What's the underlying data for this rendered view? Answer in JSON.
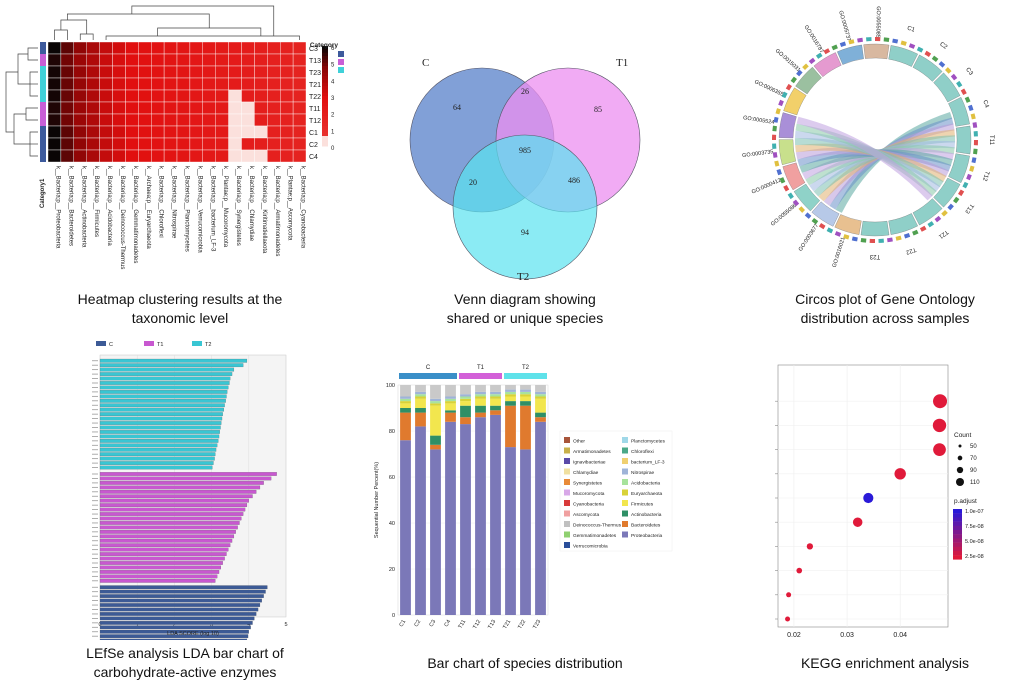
{
  "panels": [
    {
      "id": "heatmap",
      "caption_line1": "Heatmap clustering results at the",
      "caption_line2": "taxonomic level",
      "chart_data": {
        "type": "heatmap",
        "rows": [
          "C3",
          "T13",
          "T23",
          "T21",
          "T22",
          "T11",
          "T12",
          "C1",
          "C2",
          "C4"
        ],
        "row_category": [
          "C",
          "T1",
          "T2",
          "T2",
          "T2",
          "T1",
          "T1",
          "C",
          "C",
          "C"
        ],
        "columns": [
          "k__Bacteria;p__Proteobacteria",
          "k__Bacteria;p__Bacteroidetes",
          "k__Bacteria;p__Actinobacteria",
          "k__Bacteria;p__Firmicutes",
          "k__Bacteria;p__Acidobacteria",
          "k__Bacteria;p__Deinococcus-Thermus",
          "k__Bacteria;p__Gemmatimonadetes",
          "k__Archaea;p__Euryarchaeota",
          "k__Bacteria;p__Chloroflexi",
          "k__Bacteria;p__Nitrospirae",
          "k__Bacteria;p__Planctomycetes",
          "k__Bacteria;p__Verrucomicrobia",
          "k__Bacteria;p__bacterium_LF-3",
          "k__Plantae;p__Mucoromycota",
          "k__Bacteria;p__Synergistetes",
          "k__Bacteria;p__Chlamydiae",
          "k__Bacteria;p__Kiritimatiellaeota",
          "k__Bacteria;p__Armatimonadetes",
          "k__Plantae;p__Ascomycota",
          "k__Bacteria;p__Cyanobacteria"
        ],
        "values": [
          [
            6.0,
            5.2,
            4.6,
            4.1,
            3.6,
            3.3,
            3.0,
            2.9,
            2.8,
            2.7,
            2.6,
            2.5,
            2.4,
            2.3,
            2.2,
            2.1,
            2.0,
            1.9,
            1.8,
            1.7
          ],
          [
            5.8,
            5.0,
            4.4,
            4.0,
            3.5,
            3.2,
            3.0,
            2.9,
            2.8,
            2.7,
            2.6,
            2.5,
            2.4,
            2.3,
            2.2,
            2.1,
            2.0,
            1.9,
            1.8,
            1.7
          ],
          [
            5.9,
            5.1,
            4.5,
            4.0,
            3.5,
            3.2,
            3.0,
            2.9,
            2.8,
            2.7,
            2.6,
            2.5,
            2.4,
            2.3,
            2.2,
            2.1,
            2.0,
            1.9,
            1.8,
            1.7
          ],
          [
            5.9,
            5.1,
            4.5,
            4.0,
            3.5,
            3.2,
            3.0,
            2.9,
            2.8,
            2.7,
            2.6,
            2.5,
            2.4,
            2.3,
            2.2,
            2.1,
            2.0,
            1.9,
            1.8,
            1.7
          ],
          [
            5.9,
            5.1,
            4.5,
            4.0,
            3.5,
            3.2,
            3.0,
            2.9,
            2.8,
            2.7,
            2.6,
            2.5,
            2.4,
            2.3,
            0.2,
            2.1,
            2.0,
            1.9,
            1.8,
            1.7
          ],
          [
            5.8,
            5.0,
            4.4,
            4.0,
            3.5,
            3.2,
            3.0,
            2.9,
            2.8,
            2.7,
            2.6,
            2.5,
            2.4,
            2.3,
            0.3,
            0.3,
            2.0,
            1.9,
            1.8,
            1.7
          ],
          [
            5.8,
            5.0,
            4.4,
            4.0,
            3.5,
            3.2,
            3.0,
            2.9,
            2.8,
            2.7,
            2.6,
            2.5,
            2.4,
            2.3,
            0.2,
            0.2,
            2.0,
            1.9,
            1.8,
            1.7
          ],
          [
            6.0,
            5.2,
            4.6,
            4.1,
            3.6,
            3.3,
            3.0,
            2.9,
            2.8,
            2.7,
            2.6,
            2.5,
            2.4,
            2.3,
            0.1,
            0.5,
            0.4,
            1.9,
            1.8,
            1.7
          ],
          [
            6.0,
            5.2,
            4.6,
            4.1,
            3.6,
            3.3,
            3.0,
            2.9,
            2.8,
            2.7,
            2.6,
            2.5,
            2.4,
            2.3,
            0.1,
            2.1,
            2.0,
            1.9,
            1.8,
            1.7
          ],
          [
            6.0,
            5.2,
            4.6,
            4.1,
            3.6,
            3.3,
            3.0,
            2.9,
            2.8,
            2.7,
            2.6,
            2.5,
            2.4,
            2.3,
            0.1,
            0.1,
            0.1,
            1.9,
            1.8,
            1.7
          ]
        ],
        "colorbar_ticks": [
          "6",
          "5",
          "4",
          "3",
          "2",
          "1",
          "0"
        ],
        "legend_title": "Category",
        "legend_items": [
          "C",
          "T1",
          "T2"
        ],
        "legend_colors": [
          "#3d5a9c",
          "#c85fd6",
          "#3fd1d9"
        ],
        "category_label": "Category1"
      }
    },
    {
      "id": "venn",
      "caption_line1": "Venn diagram showing",
      "caption_line2": "shared or unique species",
      "chart_data": {
        "type": "venn",
        "sets": [
          "C",
          "T1",
          "T2"
        ],
        "set_colors": [
          "#6b8fd0",
          "#ec8ff0",
          "#5ae3f0"
        ],
        "regions": {
          "C_only": "64",
          "T1_only": "85",
          "T2_only": "94",
          "C_T1": "26",
          "C_T2": "20",
          "T1_T2": "486",
          "C_T1_T2": "985"
        }
      }
    },
    {
      "id": "circos",
      "caption_line1": "Circos plot of Gene Ontology",
      "caption_line2": "distribution across samples",
      "chart_data": {
        "type": "circos",
        "go_terms": [
          "GO:0016021",
          "GO:0003677",
          "GO:0055086",
          "GO:0000412",
          "GO:0003735",
          "GO:0005524",
          "GO:0006355",
          "GO:0015031",
          "GO:0016787",
          "GO:0005737",
          "GO:0055085"
        ],
        "samples": [
          "C1",
          "C2",
          "C3",
          "C4",
          "T11",
          "T12",
          "T13",
          "T21",
          "T22",
          "T23"
        ]
      }
    },
    {
      "id": "lefse",
      "caption_line1": "LEfSe analysis LDA bar chart of",
      "caption_line2": "carbohydrate-active enzymes",
      "chart_data": {
        "type": "bar",
        "orientation": "horizontal",
        "legend": [
          "C",
          "T1",
          "T2"
        ],
        "colors": [
          "#3c5a96",
          "#c858d0",
          "#39c6d3"
        ],
        "xlabel": "LDA SCORE (log 10)",
        "xticks": [
          "0",
          "1",
          "2",
          "3",
          "4",
          "5"
        ],
        "xlim": [
          0,
          5
        ],
        "series": [
          {
            "name": "T2",
            "values": [
              3.95,
              3.85,
              3.6,
              3.55,
              3.5,
              3.48,
              3.45,
              3.42,
              3.4,
              3.38,
              3.35,
              3.33,
              3.3,
              3.28,
              3.26,
              3.24,
              3.22,
              3.2,
              3.18,
              3.15,
              3.12,
              3.1,
              3.08,
              3.05,
              3.02
            ]
          },
          {
            "name": "T1",
            "values": [
              4.75,
              4.6,
              4.4,
              4.3,
              4.2,
              4.1,
              4.0,
              3.95,
              3.9,
              3.85,
              3.8,
              3.75,
              3.7,
              3.65,
              3.6,
              3.55,
              3.5,
              3.45,
              3.4,
              3.35,
              3.3,
              3.25,
              3.2,
              3.15,
              3.1
            ]
          },
          {
            "name": "C",
            "values": [
              4.5,
              4.45,
              4.4,
              4.35,
              4.3,
              4.25,
              4.2,
              4.15,
              4.1,
              4.05,
              4.0,
              3.98,
              3.95,
              3.92,
              3.9,
              3.88,
              3.86,
              3.84,
              3.82,
              3.8
            ]
          }
        ]
      }
    },
    {
      "id": "stacked",
      "caption_line1": "Bar chart of species distribution",
      "caption_line2": "",
      "chart_data": {
        "type": "bar",
        "stacked": true,
        "ylabel": "Sequential Number Percent(%)",
        "yticks": [
          "0",
          "20",
          "40",
          "60",
          "80",
          "100"
        ],
        "ylim": [
          0,
          100
        ],
        "categories": [
          "C1",
          "C2",
          "C3",
          "C4",
          "T11",
          "T12",
          "T13",
          "T21",
          "T22",
          "T23"
        ],
        "groups": [
          {
            "name": "C",
            "color": "#3a8fc8"
          },
          {
            "name": "T1",
            "color": "#d360d8"
          },
          {
            "name": "T2",
            "color": "#5fe2ea"
          }
        ],
        "series": [
          {
            "name": "Proteobacteria",
            "color": "#7b78b8",
            "values": [
              76,
              82,
              72,
              84,
              83,
              86,
              87,
              73,
              72,
              84
            ]
          },
          {
            "name": "Bacteroidetes",
            "color": "#e07a2e",
            "values": [
              12,
              6,
              2,
              4,
              3,
              2,
              2,
              18,
              19,
              2
            ]
          },
          {
            "name": "Actinobacteria",
            "color": "#2f8f66",
            "values": [
              2,
              2,
              4,
              1,
              5,
              3,
              2,
              2,
              2,
              2
            ]
          },
          {
            "name": "Firmicutes",
            "color": "#f2e64e",
            "values": [
              2,
              4,
              13,
              3,
              2,
              3,
              3,
              2,
              2,
              6
            ]
          },
          {
            "name": "Euryarchaeota",
            "color": "#d8d238",
            "values": [
              1,
              1,
              1,
              1,
              1,
              1,
              1,
              1,
              1,
              1
            ]
          },
          {
            "name": "Acidobacteria",
            "color": "#a7e39c",
            "values": [
              1,
              1,
              1,
              1,
              1,
              1,
              1,
              1,
              1,
              1
            ]
          },
          {
            "name": "Nitrospirae",
            "color": "#9fb4d8",
            "values": [
              1,
              1,
              1,
              1,
              1,
              1,
              1,
              1,
              1,
              1
            ]
          },
          {
            "name": "Other",
            "color": "#c9c9c9",
            "values": [
              5,
              3,
              6,
              5,
              4,
              3,
              3,
              2,
              2,
              3
            ]
          }
        ],
        "legend_left": [
          {
            "name": "Other",
            "color": "#a8553a"
          },
          {
            "name": "Armatimonadetes",
            "color": "#c8b04a"
          },
          {
            "name": "Ignavibacteriae",
            "color": "#5a4aa8"
          },
          {
            "name": "Chlamydiae",
            "color": "#f0e0a0"
          },
          {
            "name": "Synergistetes",
            "color": "#e88a38"
          },
          {
            "name": "Mucoromycota",
            "color": "#d8a8e8"
          },
          {
            "name": "Cyanobacteria",
            "color": "#d83a3a"
          },
          {
            "name": "Ascomycota",
            "color": "#f0a0a0"
          },
          {
            "name": "Deinococcus-Thermus",
            "color": "#c0c0c0"
          },
          {
            "name": "Gemmatimonadetes",
            "color": "#8fd070"
          },
          {
            "name": "Verrucomicrobia",
            "color": "#2a4e9a"
          }
        ],
        "legend_right": [
          {
            "name": "Planctomycetes",
            "color": "#a0d8e8"
          },
          {
            "name": "Chloroflexi",
            "color": "#4aa888"
          },
          {
            "name": "bacterium_LF-3",
            "color": "#f0d070"
          },
          {
            "name": "Nitrospirae",
            "color": "#9fb4d8"
          },
          {
            "name": "Acidobacteria",
            "color": "#a7e39c"
          },
          {
            "name": "Euryarchaeota",
            "color": "#d8d238"
          },
          {
            "name": "Firmicutes",
            "color": "#f2e64e"
          },
          {
            "name": "Actinobacteria",
            "color": "#2f8f66"
          },
          {
            "name": "Bacteroidetes",
            "color": "#e07a2e"
          },
          {
            "name": "Proteobacteria",
            "color": "#7b78b8"
          }
        ]
      }
    },
    {
      "id": "kegg",
      "caption_line1": "KEGG enrichment analysis",
      "caption_line2": "",
      "chart_data": {
        "type": "scatter",
        "xticks": [
          "0.02",
          "0.03",
          "0.04"
        ],
        "xlim": [
          0.017,
          0.049
        ],
        "ylim": [
          0,
          10
        ],
        "x": [
          0.0475,
          0.0474,
          0.0474,
          0.04,
          0.034,
          0.032,
          0.023,
          0.021,
          0.019,
          0.0188
        ],
        "y": [
          9.0,
          8.0,
          7.0,
          6.0,
          5.0,
          4.0,
          3.0,
          2.0,
          1.0,
          0.0
        ],
        "count": [
          110,
          105,
          100,
          90,
          80,
          75,
          50,
          45,
          40,
          40
        ],
        "p_adjust": [
          2.6e-08,
          2.6e-08,
          2.7e-08,
          2.8e-08,
          1e-07,
          2.6e-08,
          2.9e-08,
          2.9e-08,
          2.9e-08,
          2.9e-08
        ],
        "count_title": "Count",
        "count_legend": [
          "50",
          "70",
          "90",
          "110"
        ],
        "p_title": "p.adjust",
        "p_legend": [
          "1.0e-07",
          "7.5e-08",
          "5.0e-08",
          "2.5e-08"
        ]
      }
    }
  ]
}
